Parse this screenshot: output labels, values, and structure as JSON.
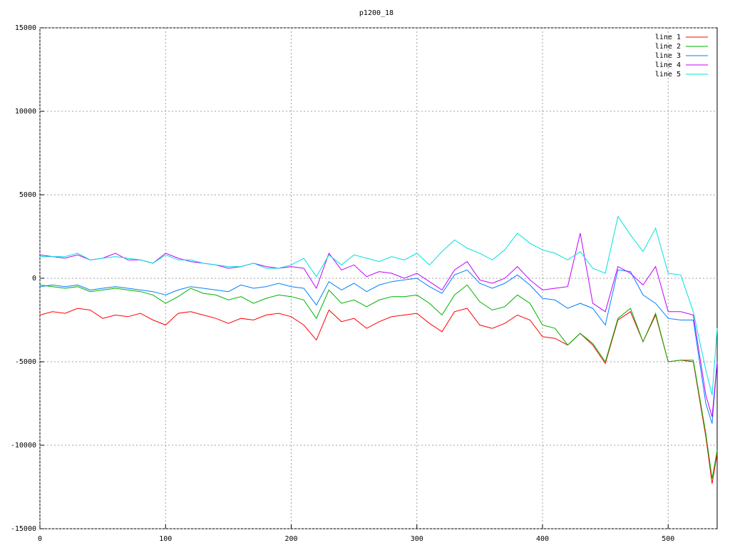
{
  "chart_data": {
    "type": "line",
    "title": "p1200_18",
    "x": [
      0,
      10,
      20,
      30,
      40,
      50,
      60,
      70,
      80,
      90,
      100,
      110,
      120,
      130,
      140,
      150,
      160,
      170,
      180,
      190,
      200,
      210,
      220,
      230,
      240,
      250,
      260,
      270,
      280,
      290,
      300,
      310,
      320,
      330,
      340,
      350,
      360,
      370,
      380,
      390,
      400,
      410,
      420,
      430,
      440,
      450,
      460,
      470,
      480,
      490,
      500,
      510,
      520,
      530,
      535,
      539
    ],
    "series": [
      {
        "name": "line 1",
        "color": "#ff0000",
        "values": [
          -2200,
          -2000,
          -2100,
          -1800,
          -1900,
          -2400,
          -2200,
          -2300,
          -2100,
          -2500,
          -2800,
          -2100,
          -2000,
          -2200,
          -2400,
          -2700,
          -2400,
          -2500,
          -2200,
          -2100,
          -2300,
          -2800,
          -3700,
          -1900,
          -2600,
          -2400,
          -3000,
          -2600,
          -2300,
          -2200,
          -2100,
          -2700,
          -3200,
          -2000,
          -1800,
          -2800,
          -3000,
          -2700,
          -2200,
          -2500,
          -3500,
          -3600,
          -4000,
          -3300,
          -4000,
          -5100,
          -2500,
          -2000,
          -3800,
          -2200,
          -5000,
          -4900,
          -5000,
          -9500,
          -12300,
          -10500
        ]
      },
      {
        "name": "line 2",
        "color": "#00b000",
        "values": [
          -400,
          -500,
          -600,
          -500,
          -800,
          -700,
          -600,
          -700,
          -800,
          -1000,
          -1500,
          -1100,
          -600,
          -900,
          -1000,
          -1300,
          -1100,
          -1500,
          -1200,
          -1000,
          -1100,
          -1300,
          -2400,
          -700,
          -1500,
          -1300,
          -1700,
          -1300,
          -1100,
          -1100,
          -1000,
          -1500,
          -2200,
          -1000,
          -400,
          -1400,
          -1900,
          -1700,
          -1000,
          -1500,
          -2800,
          -3000,
          -4000,
          -3300,
          -3900,
          -5000,
          -2400,
          -1800,
          -3800,
          -2100,
          -5000,
          -4900,
          -4900,
          -9300,
          -12000,
          -10300
        ]
      },
      {
        "name": "line 3",
        "color": "#0080ff",
        "values": [
          -500,
          -400,
          -500,
          -400,
          -700,
          -600,
          -500,
          -600,
          -700,
          -800,
          -1000,
          -700,
          -500,
          -600,
          -700,
          -800,
          -400,
          -600,
          -500,
          -300,
          -500,
          -600,
          -1600,
          -200,
          -700,
          -300,
          -800,
          -400,
          -200,
          -100,
          0,
          -500,
          -900,
          200,
          500,
          -300,
          -600,
          -300,
          200,
          -400,
          -1200,
          -1300,
          -1800,
          -1500,
          -1800,
          -2800,
          500,
          400,
          -1000,
          -1500,
          -2400,
          -2500,
          -2500,
          -7500,
          -8700,
          -5000
        ]
      },
      {
        "name": "line 4",
        "color": "#c000ff",
        "values": [
          1400,
          1300,
          1200,
          1400,
          1100,
          1200,
          1500,
          1100,
          1100,
          900,
          1500,
          1200,
          1000,
          900,
          800,
          600,
          700,
          900,
          700,
          600,
          700,
          600,
          -600,
          1500,
          500,
          800,
          100,
          400,
          300,
          0,
          300,
          -200,
          -700,
          500,
          1000,
          -100,
          -300,
          0,
          700,
          -100,
          -700,
          -600,
          -500,
          2700,
          -1500,
          -2000,
          700,
          300,
          -400,
          700,
          -2000,
          -2000,
          -2200,
          -7000,
          -8300,
          -5000
        ]
      },
      {
        "name": "line 5",
        "color": "#00e0e0",
        "values": [
          1300,
          1300,
          1300,
          1500,
          1100,
          1200,
          1300,
          1200,
          1100,
          900,
          1400,
          1100,
          1100,
          900,
          800,
          700,
          700,
          900,
          600,
          600,
          800,
          1200,
          100,
          1400,
          800,
          1400,
          1200,
          1000,
          1300,
          1100,
          1500,
          800,
          1600,
          2300,
          1800,
          1500,
          1100,
          1700,
          2700,
          2100,
          1700,
          1500,
          1100,
          1600,
          600,
          300,
          3700,
          2600,
          1600,
          3000,
          300,
          200,
          -2000,
          -5500,
          -7000,
          -3000
        ]
      }
    ],
    "xlim": [
      0,
      539
    ],
    "xticks": [
      0,
      100,
      200,
      300,
      400,
      500
    ],
    "ylim": [
      -15000,
      15000
    ],
    "yticks": [
      -15000,
      -10000,
      -5000,
      0,
      5000,
      10000,
      15000
    ],
    "grid": true,
    "legend": "top-right"
  }
}
